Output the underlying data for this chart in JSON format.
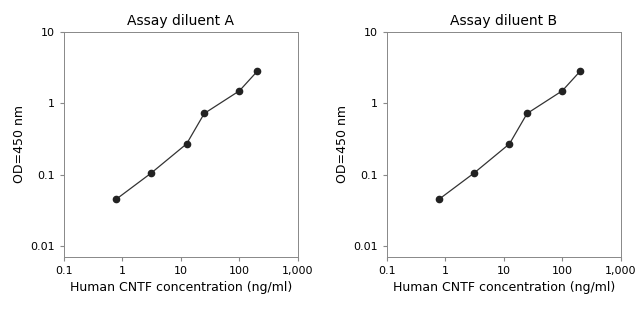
{
  "plot_A": {
    "title": "Assay diluent A",
    "x": [
      0.78,
      3.1,
      12.5,
      25,
      100,
      200
    ],
    "y": [
      0.045,
      0.105,
      0.27,
      0.72,
      1.5,
      2.8
    ]
  },
  "plot_B": {
    "title": "Assay diluent B",
    "x": [
      0.78,
      3.1,
      12.5,
      25,
      100,
      200
    ],
    "y": [
      0.045,
      0.105,
      0.27,
      0.72,
      1.5,
      2.8
    ]
  },
  "xlabel": "Human CNTF concentration (ng/ml)",
  "ylabel": "OD=450 nm",
  "xlim": [
    0.1,
    1000
  ],
  "ylim": [
    0.007,
    10
  ],
  "xticks": [
    0.1,
    1,
    10,
    100,
    1000
  ],
  "xtick_labels": [
    "0.1",
    "1",
    "10",
    "100",
    "1,000"
  ],
  "yticks": [
    0.01,
    0.1,
    1,
    10
  ],
  "ytick_labels": [
    "0.01",
    "0.1",
    "1",
    "10"
  ],
  "line_color": "#333333",
  "marker_color": "#222222",
  "marker_size": 4.5,
  "title_fontsize": 10,
  "label_fontsize": 9,
  "tick_fontsize": 8,
  "spine_color": "#888888",
  "bg_color": "#ffffff",
  "figure_bg": "#ffffff"
}
